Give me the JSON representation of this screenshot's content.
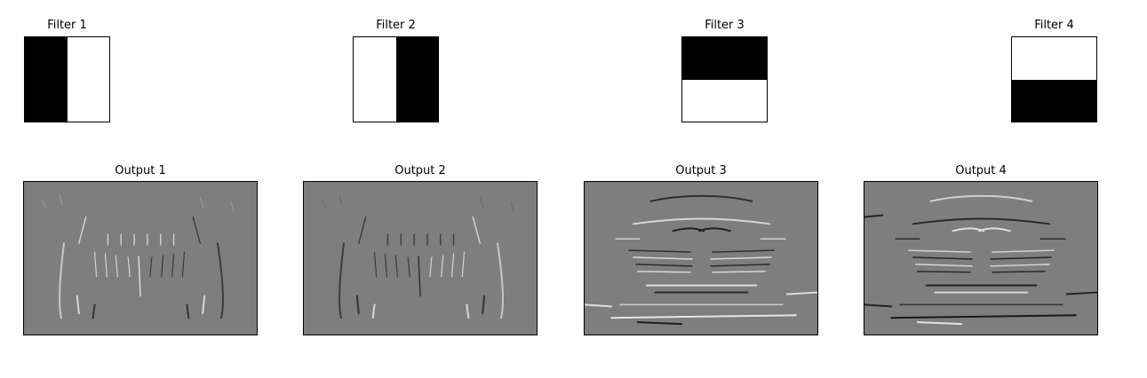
{
  "filters": [
    {
      "title": "Filter 1",
      "orientation": "vertical",
      "first_half": "black",
      "second_half": "white"
    },
    {
      "title": "Filter 2",
      "orientation": "vertical",
      "first_half": "white",
      "second_half": "black"
    },
    {
      "title": "Filter 3",
      "orientation": "horizontal",
      "first_half": "black",
      "second_half": "white"
    },
    {
      "title": "Filter 4",
      "orientation": "horizontal",
      "first_half": "white",
      "second_half": "black"
    }
  ],
  "outputs": [
    {
      "title": "Output 1"
    },
    {
      "title": "Output 2"
    },
    {
      "title": "Output 3"
    },
    {
      "title": "Output 4"
    }
  ],
  "colors": {
    "black": "#000000",
    "white": "#ffffff",
    "output_gray": "#7e7e7e"
  }
}
